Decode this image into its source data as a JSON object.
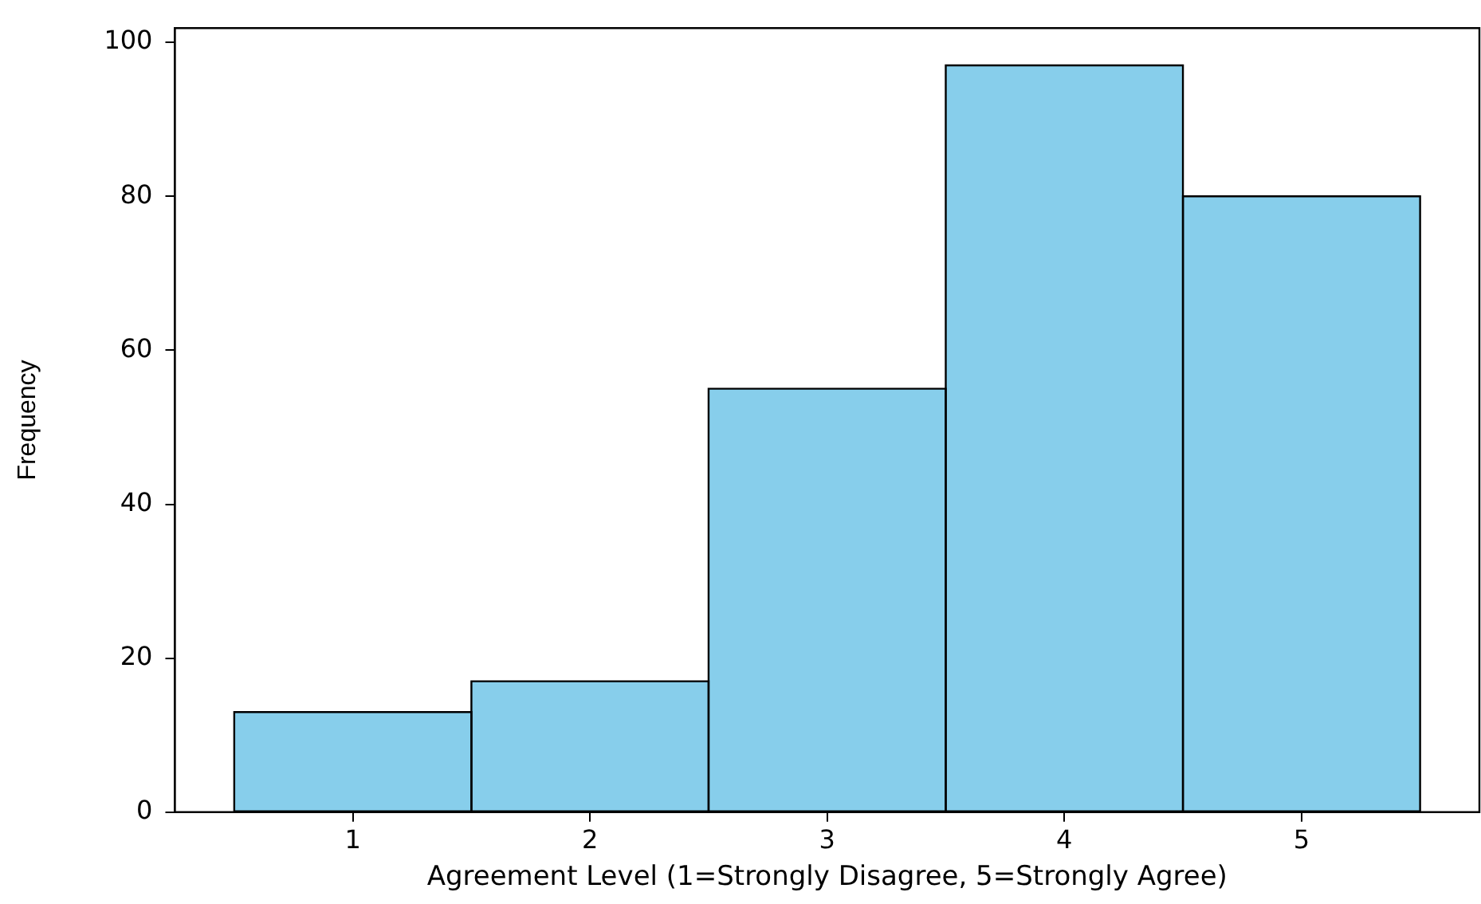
{
  "chart_data": {
    "type": "histogram",
    "xlabel": "Agreement Level (1=Strongly Disagree, 5=Strongly Agree)",
    "ylabel": "Frequency",
    "bins": [
      0.5,
      1.5,
      2.5,
      3.5,
      4.5,
      5.5
    ],
    "values": [
      13,
      17,
      55,
      97,
      80
    ],
    "color": "#87ceeb",
    "xlim": [
      0.25,
      5.75
    ],
    "xticks": [
      1,
      2,
      3,
      4,
      5
    ],
    "ylim": [
      0,
      101.85
    ],
    "yticks": [
      0,
      20,
      40,
      60,
      80,
      100
    ]
  }
}
